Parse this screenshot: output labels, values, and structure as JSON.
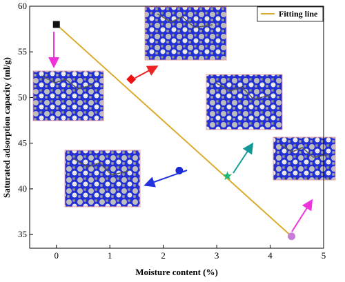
{
  "chart_data": {
    "type": "scatter",
    "xlabel": "Moisture content (%)",
    "ylabel": "Saturated adsorption capacity (ml/g)",
    "xlim": [
      -0.5,
      5
    ],
    "ylim": [
      33.5,
      60
    ],
    "xticks": [
      0,
      1,
      2,
      3,
      4,
      5
    ],
    "yticks": [
      35,
      40,
      45,
      50,
      55,
      60
    ],
    "grid": false,
    "legend_position": "top-right",
    "points": [
      {
        "x": 0,
        "y": 58,
        "marker": "square",
        "color": "#111111"
      },
      {
        "x": 1.4,
        "y": 52,
        "marker": "diamond",
        "color": "#ee1111"
      },
      {
        "x": 2.3,
        "y": 42,
        "marker": "circle",
        "color": "#1a2bd6"
      },
      {
        "x": 3.2,
        "y": 41.4,
        "marker": "star",
        "color": "#22b573"
      },
      {
        "x": 4.4,
        "y": 34.8,
        "marker": "circle",
        "color": "#c77dd8"
      }
    ],
    "series": [
      {
        "name": "Fitting line",
        "x": [
          0,
          4.4
        ],
        "y": [
          58,
          34.8
        ],
        "color": "#dcaa2c"
      }
    ],
    "arrows": [
      {
        "color": "#ee33dd"
      },
      {
        "color": "#ee2222"
      },
      {
        "color": "#2233dd"
      },
      {
        "color": "#119999"
      },
      {
        "color": "#ee33dd"
      }
    ]
  }
}
